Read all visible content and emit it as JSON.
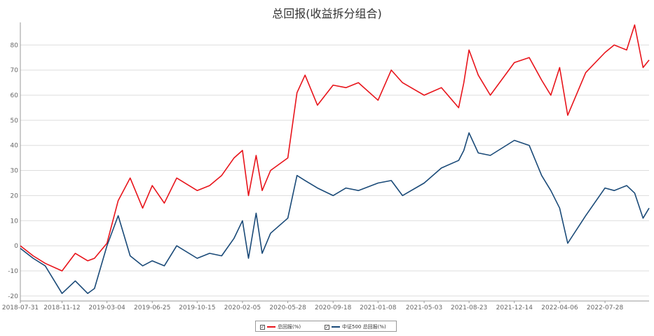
{
  "chart_data": {
    "type": "line",
    "title": "总回报(收益拆分组合)",
    "xlabel": "",
    "ylabel": "",
    "ylim": [
      -22,
      89
    ],
    "y_ticks": [
      -20,
      -10,
      0,
      10,
      20,
      30,
      40,
      50,
      60,
      70,
      80
    ],
    "x_tick_labels": [
      "2018-07-31",
      "2018-11-12",
      "2019-03-04",
      "2019-06-25",
      "2019-10-15",
      "2020-02-05",
      "2020-05-28",
      "2020-09-18",
      "2021-01-08",
      "2021-05-03",
      "2021-08-23",
      "2021-12-14",
      "2022-04-06",
      "2022-07-28"
    ],
    "grid": "horizontal",
    "legend_position": "bottom",
    "x": [
      "2018-07-31",
      "2018-09-01",
      "2018-10-01",
      "2018-11-12",
      "2018-12-15",
      "2019-01-15",
      "2019-02-01",
      "2019-03-04",
      "2019-04-01",
      "2019-05-01",
      "2019-06-01",
      "2019-06-25",
      "2019-07-25",
      "2019-08-25",
      "2019-10-15",
      "2019-11-15",
      "2019-12-15",
      "2020-01-15",
      "2020-02-05",
      "2020-02-20",
      "2020-03-10",
      "2020-03-25",
      "2020-04-15",
      "2020-05-28",
      "2020-06-20",
      "2020-07-10",
      "2020-08-10",
      "2020-09-18",
      "2020-10-20",
      "2020-11-20",
      "2021-01-08",
      "2021-02-10",
      "2021-03-10",
      "2021-05-03",
      "2021-06-15",
      "2021-07-28",
      "2021-08-10",
      "2021-08-23",
      "2021-09-15",
      "2021-10-15",
      "2021-12-14",
      "2022-01-20",
      "2022-02-20",
      "2022-03-15",
      "2022-04-06",
      "2022-04-26",
      "2022-06-10",
      "2022-07-28",
      "2022-08-20",
      "2022-09-20",
      "2022-10-10",
      "2022-10-31",
      "2022-11-15"
    ],
    "series": [
      {
        "name": "总回报(%)",
        "color": "#e8141b",
        "values": [
          0,
          -4,
          -7,
          -10,
          -3,
          -6,
          -5,
          1,
          18,
          27,
          15,
          24,
          17,
          27,
          22,
          24,
          28,
          35,
          38,
          20,
          36,
          22,
          30,
          35,
          61,
          68,
          56,
          64,
          63,
          65,
          58,
          70,
          65,
          60,
          63,
          55,
          65,
          78,
          68,
          60,
          73,
          75,
          66,
          60,
          71,
          52,
          69,
          77,
          80,
          78,
          88,
          71,
          74
        ]
      },
      {
        "name": "中证500 总回报(%)",
        "color": "#1a4a78",
        "values": [
          -1,
          -5,
          -8,
          -19,
          -14,
          -19,
          -17,
          0,
          12,
          -4,
          -8,
          -6,
          -8,
          0,
          -5,
          -3,
          -4,
          3,
          10,
          -5,
          13,
          -3,
          5,
          11,
          28,
          26,
          23,
          20,
          23,
          22,
          25,
          26,
          20,
          25,
          31,
          34,
          38,
          45,
          37,
          36,
          42,
          40,
          28,
          22,
          15,
          1,
          12,
          23,
          22,
          24,
          21,
          11,
          15
        ]
      }
    ]
  },
  "legend": {
    "items": [
      {
        "label": "总回报(%)",
        "check": "✓",
        "color": "#e8141b"
      },
      {
        "label": "中证500 总回报(%)",
        "check": "✓",
        "color": "#1a4a78"
      }
    ]
  }
}
